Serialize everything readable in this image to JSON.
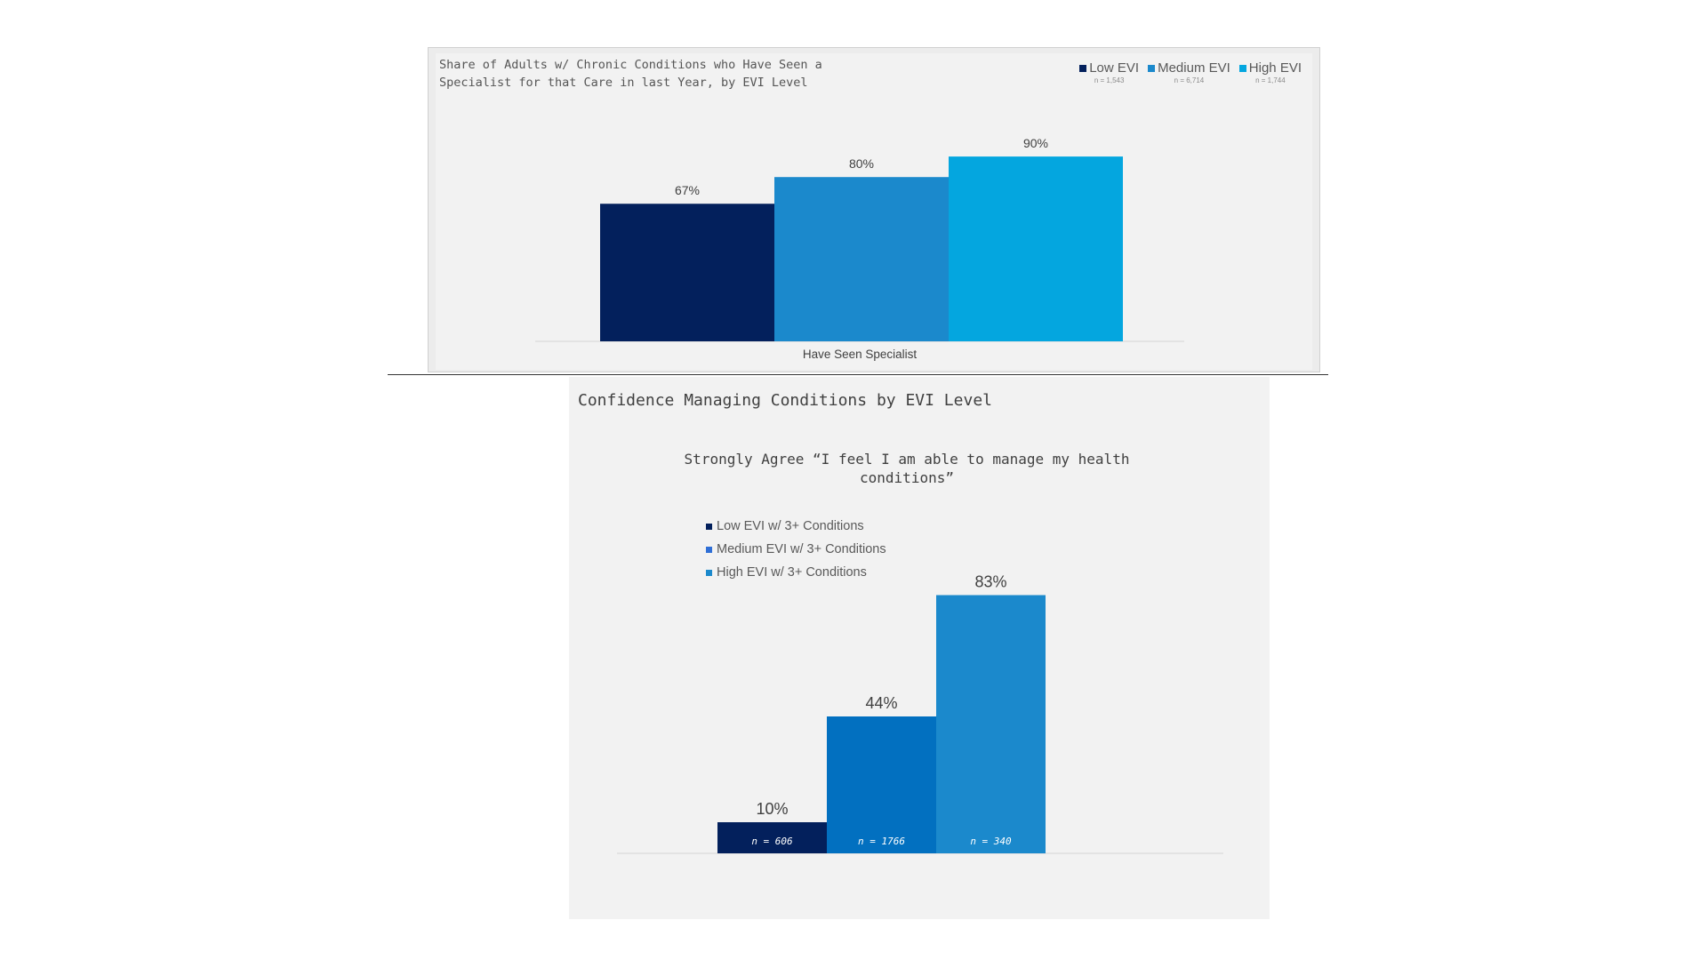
{
  "chart_data": [
    {
      "type": "bar",
      "title": "Share of Adults w/ Chronic Conditions who Have Seen a\nSpecialist for that Care in last Year, by EVI Level",
      "categories": [
        "Have Seen Specialist"
      ],
      "series": [
        {
          "name": "Low EVI",
          "n_label": "n = 1,543",
          "values": [
            67
          ],
          "label": "67%",
          "color": "#03205c"
        },
        {
          "name": "Medium EVI",
          "n_label": "n = 6,714",
          "values": [
            80
          ],
          "label": "80%",
          "color": "#1b89cc"
        },
        {
          "name": "High EVI",
          "n_label": "n = 1,744",
          "values": [
            90
          ],
          "label": "90%",
          "color": "#04a6df"
        }
      ],
      "ylim": [
        0,
        100
      ],
      "legend_position": "top-right",
      "grid": false
    },
    {
      "type": "bar",
      "title": "Confidence Managing Conditions by EVI Level",
      "subtitle": "Strongly Agree “I feel I am able to manage my health\nconditions”",
      "series": [
        {
          "name": "Low EVI w/ 3+ Conditions",
          "values": [
            10
          ],
          "label": "10%",
          "n_label": "n = 606",
          "color": "#03205c",
          "legend_color": "#03205c"
        },
        {
          "name": "Medium EVI w/ 3+ Conditions",
          "values": [
            44
          ],
          "label": "44%",
          "n_label": "n = 1766",
          "color": "#0270c0",
          "legend_color": "#2f6fd6"
        },
        {
          "name": "High EVI w/ 3+ Conditions",
          "values": [
            83
          ],
          "label": "83%",
          "n_label": "n = 340",
          "color": "#1b89cc",
          "legend_color": "#1b89cc"
        }
      ],
      "ylim": [
        0,
        100
      ],
      "legend_position": "top-left",
      "grid": false
    }
  ]
}
